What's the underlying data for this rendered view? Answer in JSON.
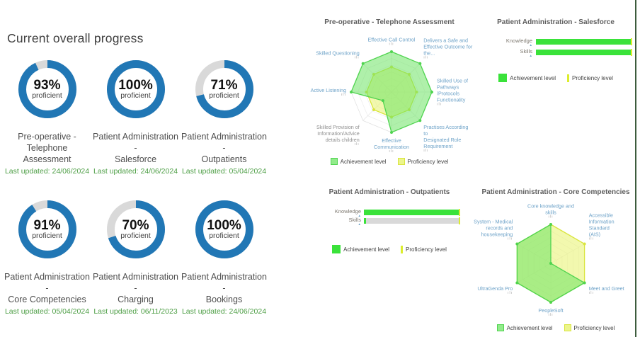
{
  "page": {
    "title": "Current overall progress",
    "right_border_color": "#3d5c3d",
    "background": "#ffffff"
  },
  "colors": {
    "donut_fill": "#2177b5",
    "donut_track": "#d9d9d9",
    "achievement_green": "#3ae23a",
    "proficiency_yellow": "#dced2d",
    "bar_track_gray": "#d9d9d9",
    "date_green": "#4d9e45",
    "axis_label_blue": "#6da2c8",
    "axis_label_muted": "#909090",
    "radar_achievement_fill": "rgba(110,228,100,0.55)",
    "radar_achievement_stroke": "#4fd44f",
    "radar_proficiency_fill": "rgba(233,243,120,0.6)",
    "radar_proficiency_stroke": "#d9e53e"
  },
  "donuts": [
    {
      "percent": 93,
      "percent_label": "93%",
      "sub_label": "proficient",
      "title_lines": [
        "Pre-operative -",
        "Telephone Assessment"
      ],
      "last_updated": "Last updated: 24/06/2024"
    },
    {
      "percent": 100,
      "percent_label": "100%",
      "sub_label": "proficient",
      "title_lines": [
        "Patient Administration -",
        "Salesforce"
      ],
      "last_updated": "Last updated: 24/06/2024"
    },
    {
      "percent": 71,
      "percent_label": "71%",
      "sub_label": "proficient",
      "title_lines": [
        "Patient Administration -",
        "Outpatients"
      ],
      "last_updated": "Last updated: 05/04/2024"
    },
    {
      "percent": 91,
      "percent_label": "91%",
      "sub_label": "proficient",
      "title_lines": [
        "Patient Administration -",
        "Core Competencies"
      ],
      "last_updated": "Last updated: 05/04/2024"
    },
    {
      "percent": 70,
      "percent_label": "70%",
      "sub_label": "proficient",
      "title_lines": [
        "Patient Administration -",
        "Charging"
      ],
      "last_updated": "Last updated: 06/11/2023"
    },
    {
      "percent": 100,
      "percent_label": "100%",
      "sub_label": "proficient",
      "title_lines": [
        "Patient Administration -",
        "Bookings"
      ],
      "last_updated": "Last updated: 24/06/2024"
    }
  ],
  "chart_data": [
    {
      "type": "radar",
      "title": "Pre-operative - Telephone Assessment",
      "value_range": [
        0,
        1
      ],
      "layout_hints": {
        "legend_position": "bottom",
        "grid": true
      },
      "axes": [
        {
          "lines": [
            "Effective Call Control"
          ],
          "muted": false
        },
        {
          "lines": [
            "Delivers a Safe and",
            "Effective Outcome for",
            "the..."
          ],
          "muted": false
        },
        {
          "lines": [
            "Skilled Use of",
            "Pathways /Protocols",
            "Functionality"
          ],
          "muted": false
        },
        {
          "lines": [
            "Practises According to",
            "Designated Role",
            "Requirement"
          ],
          "muted": false
        },
        {
          "lines": [
            "Effective",
            "Communication"
          ],
          "muted": false
        },
        {
          "lines": [
            "Skilled Provision of",
            "Information/Advice",
            "details  children"
          ],
          "muted": true
        },
        {
          "lines": [
            "Active Listening"
          ],
          "muted": false
        },
        {
          "lines": [
            "Skilled Questioning"
          ],
          "muted": false
        }
      ],
      "series": [
        {
          "name": "Achievement level",
          "values": [
            1,
            1,
            1,
            1,
            1,
            0.3,
            1,
            1
          ]
        },
        {
          "name": "Proficiency level",
          "values": [
            0.62,
            0.62,
            0.62,
            0.62,
            0.62,
            0.62,
            0.62,
            0.62
          ]
        }
      ]
    },
    {
      "type": "bar",
      "title": "Patient Administration - Salesforce",
      "categories": [
        "Knowledge",
        "Skills"
      ],
      "xlim": [
        0,
        1
      ],
      "layout_hints": {
        "legend_position": "bottom",
        "orientation": "horizontal"
      },
      "series": [
        {
          "name": "Achievement level",
          "values": [
            1,
            1
          ]
        },
        {
          "name": "Proficiency level",
          "values": [
            0.99,
            0.99
          ]
        }
      ]
    },
    {
      "type": "bar",
      "title": "Patient Administration - Outpatients",
      "categories": [
        "Knowledge",
        "Skills"
      ],
      "xlim": [
        0,
        1
      ],
      "layout_hints": {
        "legend_position": "bottom",
        "orientation": "horizontal"
      },
      "series": [
        {
          "name": "Achievement level",
          "values": [
            1,
            0.02
          ]
        },
        {
          "name": "Proficiency level",
          "values": [
            0.99,
            0.99
          ]
        }
      ]
    },
    {
      "type": "radar",
      "title": "Patient Administration - Core Competencies",
      "value_range": [
        0,
        1
      ],
      "layout_hints": {
        "legend_position": "bottom",
        "grid": true
      },
      "axes": [
        {
          "lines": [
            "Core knowledge and",
            "skills"
          ],
          "muted": false
        },
        {
          "lines": [
            "Accessible",
            "Information Standard",
            "(AIS)"
          ],
          "muted": false
        },
        {
          "lines": [
            "Meet and Greet"
          ],
          "muted": false
        },
        {
          "lines": [
            "PeopleSoft"
          ],
          "muted": false
        },
        {
          "lines": [
            "UltraGenda Pro"
          ],
          "muted": false
        },
        {
          "lines": [
            "System - Medical",
            "records and",
            "housekeeping"
          ],
          "muted": false
        }
      ],
      "series": [
        {
          "name": "Achievement level",
          "values": [
            1,
            0,
            1,
            1,
            1,
            1
          ]
        },
        {
          "name": "Proficiency level",
          "values": [
            1,
            1,
            1,
            1,
            1,
            1
          ]
        }
      ]
    }
  ]
}
